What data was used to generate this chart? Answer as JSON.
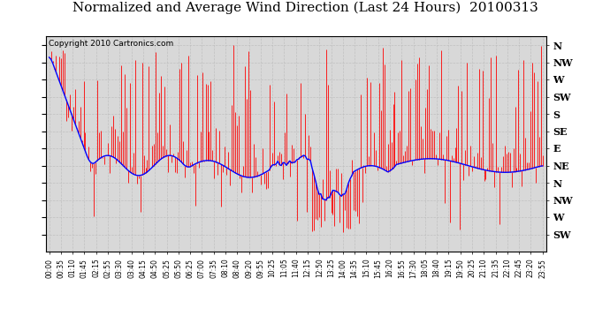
{
  "title": "Normalized and Average Wind Direction (Last 24 Hours)  20100313",
  "copyright": "Copyright 2010 Cartronics.com",
  "y_tick_labels": [
    "N",
    "NW",
    "W",
    "SW",
    "S",
    "SE",
    "E",
    "NE",
    "N",
    "NW",
    "W",
    "SW"
  ],
  "y_tick_values": [
    12,
    11,
    10,
    9,
    8,
    7,
    6,
    5,
    4,
    3,
    2,
    1
  ],
  "ylim": [
    0.0,
    12.5
  ],
  "x_tick_labels": [
    "00:00",
    "00:35",
    "01:10",
    "01:45",
    "02:15",
    "02:55",
    "03:30",
    "03:40",
    "04:15",
    "04:50",
    "05:25",
    "05:50",
    "06:25",
    "07:00",
    "07:35",
    "08:10",
    "08:40",
    "09:20",
    "09:55",
    "10:25",
    "11:05",
    "11:40",
    "12:15",
    "12:50",
    "13:25",
    "14:00",
    "14:35",
    "15:10",
    "15:45",
    "16:20",
    "16:55",
    "17:30",
    "18:05",
    "18:40",
    "19:15",
    "19:50",
    "20:25",
    "21:10",
    "21:35",
    "22:10",
    "22:45",
    "23:20",
    "23:55"
  ],
  "red_line_color": "#ff0000",
  "blue_line_color": "#0000ff",
  "grid_color": "#bbbbbb",
  "plot_bg_color": "#d8d8d8",
  "title_fontsize": 11,
  "copyright_fontsize": 6.5,
  "ylabel_fontsize": 8
}
